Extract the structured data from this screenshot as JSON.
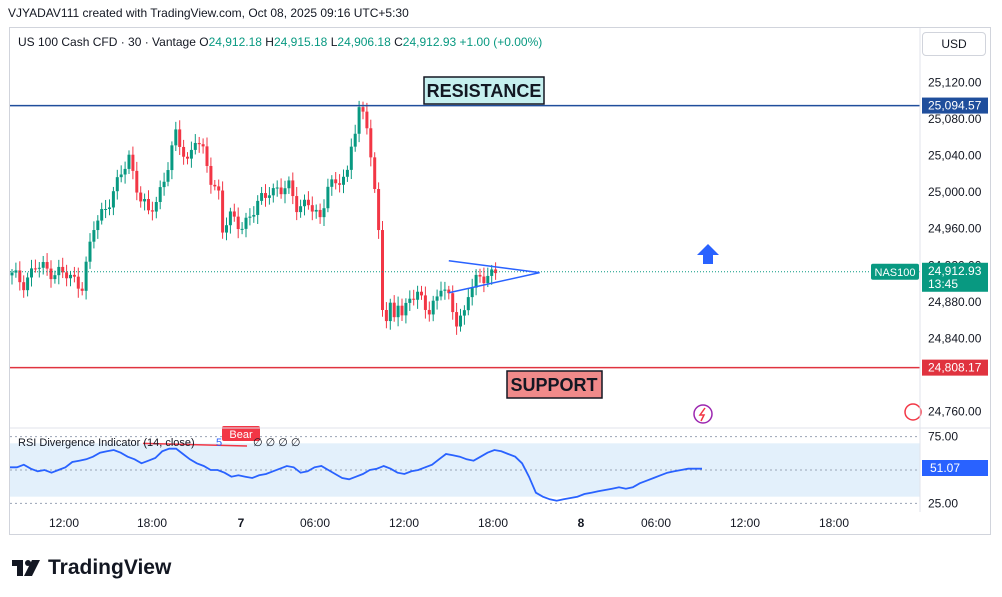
{
  "credit": "VJYADAV111 created with TradingView.com, Oct 08, 2025 09:16 UTC+5:30",
  "header": {
    "title": "US 100 Cash CFD · 30 · Vantage",
    "o_label": "O",
    "o": "24,912.18",
    "h_label": "H",
    "h": "24,915.18",
    "l_label": "L",
    "l": "24,906.18",
    "c_label": "C",
    "c": "24,912.93",
    "change": "+1.00 (+0.00%)"
  },
  "currency": "USD",
  "brand": "TradingView",
  "colors": {
    "up": "#089981",
    "down": "#f23645",
    "resistance": "#1f4e9c",
    "support": "#e0333f",
    "rsi": "#2962ff",
    "arrow": "#2962ff"
  },
  "chart_data": [
    {
      "type": "candlestick",
      "symbol": "US 100 Cash CFD",
      "interval": "30",
      "ylim": [
        24740,
        25140
      ],
      "y_ticks": [
        "25,120.00",
        "25,080.00",
        "25,040.00",
        "25,000.00",
        "24,960.00",
        "24,920.00",
        "24,880.00",
        "24,840.00",
        "24,760.00"
      ],
      "y_tick_values": [
        25120,
        25080,
        25040,
        25000,
        24960,
        24920,
        24880,
        24840,
        24760
      ],
      "x_ticks": [
        "12:00",
        "18:00",
        "7",
        "06:00",
        "12:00",
        "18:00",
        "8",
        "06:00",
        "12:00",
        "18:00"
      ],
      "x_tick_bold": [
        false,
        false,
        true,
        false,
        false,
        false,
        true,
        false,
        false,
        false
      ],
      "close_path": [
        [
          0,
          24908
        ],
        [
          3,
          24902
        ],
        [
          6,
          24918
        ],
        [
          9,
          24915
        ],
        [
          12,
          24913
        ],
        [
          15,
          24905
        ],
        [
          18,
          24900
        ],
        [
          21,
          24960
        ],
        [
          24,
          24985
        ],
        [
          27,
          25008
        ],
        [
          30,
          25038
        ],
        [
          33,
          24993
        ],
        [
          35,
          24975
        ],
        [
          37,
          24990
        ],
        [
          40,
          25030
        ],
        [
          42,
          25060
        ],
        [
          45,
          25035
        ],
        [
          47,
          25060
        ],
        [
          49,
          25040
        ],
        [
          51,
          25015
        ],
        [
          53,
          25000
        ],
        [
          54,
          24960
        ],
        [
          56,
          24970
        ],
        [
          59,
          24965
        ],
        [
          62,
          24978
        ],
        [
          66,
          25005
        ],
        [
          69,
          25000
        ],
        [
          71,
          25005
        ],
        [
          73,
          24988
        ],
        [
          76,
          24985
        ],
        [
          79,
          24970
        ],
        [
          81,
          25012
        ],
        [
          83,
          25005
        ],
        [
          86,
          25020
        ],
        [
          87,
          25055
        ],
        [
          89,
          25090
        ],
        [
          91,
          25070
        ],
        [
          92,
          25040
        ],
        [
          93,
          25000
        ],
        [
          94,
          24960
        ],
        [
          95,
          24880
        ],
        [
          96,
          24860
        ],
        [
          97,
          24870
        ],
        [
          98,
          24860
        ],
        [
          99,
          24880
        ],
        [
          100,
          24865
        ],
        [
          102,
          24890
        ],
        [
          105,
          24880
        ],
        [
          107,
          24870
        ],
        [
          110,
          24898
        ],
        [
          112,
          24880
        ],
        [
          114,
          24860
        ],
        [
          116,
          24870
        ],
        [
          117,
          24890
        ],
        [
          120,
          24905
        ],
        [
          122,
          24912
        ],
        [
          124,
          24913
        ]
      ],
      "last_price": "24,912.93",
      "last_label": "NAS100",
      "countdown": "13:45",
      "annotations": [
        {
          "label": "RESISTANCE",
          "value": 25094.57,
          "value_label": "25,094.57"
        },
        {
          "label": "SUPPORT",
          "value": 24808.17,
          "value_label": "24,808.17"
        }
      ],
      "pattern": "symmetrical-triangle",
      "arrow": "up"
    },
    {
      "type": "line",
      "indicator": "RSI Divergence Indicator (14, close)",
      "legend_value": "5",
      "legend_extra": "∅ ∅ ∅ ∅",
      "ylim": [
        20,
        80
      ],
      "y_ticks": [
        "75.00",
        "25.00"
      ],
      "y_tick_values": [
        75,
        25
      ],
      "band": [
        30,
        70
      ],
      "divergence_label": "Bear",
      "current": "51.07",
      "values": [
        52,
        52,
        54,
        51,
        49,
        50,
        48,
        50,
        52,
        56,
        57,
        58,
        60,
        63,
        64,
        65,
        63,
        60,
        58,
        55,
        57,
        59,
        64,
        66,
        66,
        62,
        58,
        55,
        53,
        50,
        50,
        48,
        45,
        46,
        45,
        44,
        46,
        47,
        49,
        51,
        53,
        52,
        48,
        49,
        52,
        53,
        50,
        47,
        44,
        43,
        45,
        47,
        50,
        51,
        53,
        51,
        48,
        47,
        49,
        50,
        52,
        54,
        58,
        62,
        61,
        60,
        58,
        57,
        60,
        63,
        65,
        64,
        62,
        60,
        55,
        45,
        33,
        30,
        28,
        27,
        28,
        29,
        30,
        32,
        33,
        34,
        35,
        36,
        37,
        36,
        37,
        40,
        42,
        44,
        46,
        48,
        49,
        50,
        51,
        51,
        51
      ]
    }
  ]
}
